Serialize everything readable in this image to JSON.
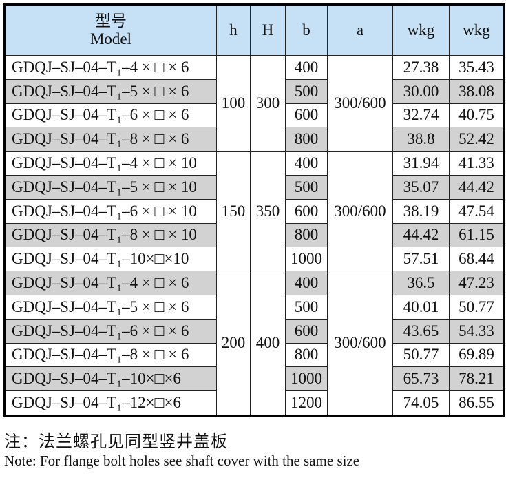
{
  "header": {
    "model_cn": "型号",
    "model_en": "Model",
    "h": "h",
    "H": "H",
    "b": "b",
    "a": "a",
    "wkg1": "wkg",
    "wkg2": "wkg"
  },
  "colors": {
    "header_bg": "#c6e0f5",
    "shade": "#d2d2d2"
  },
  "groups": [
    {
      "h": "100",
      "H": "300",
      "a": "300/600",
      "rows": [
        {
          "model": "GDQJ–SJ–04–T₁–4 × □ × 6",
          "b": "400",
          "w1": "27.38",
          "w2": "35.43",
          "shaded": false
        },
        {
          "model": "GDQJ–SJ–04–T₁–5 × □ × 6",
          "b": "500",
          "w1": "30.00",
          "w2": "38.08",
          "shaded": true
        },
        {
          "model": "GDQJ–SJ–04–T₁–6 × □ × 6",
          "b": "600",
          "w1": "32.74",
          "w2": "40.75",
          "shaded": false
        },
        {
          "model": "GDQJ–SJ–04–T₁–8 × □ × 6",
          "b": "800",
          "w1": "38.8",
          "w2": "52.42",
          "shaded": true
        }
      ]
    },
    {
      "h": "150",
      "H": "350",
      "a": "300/600",
      "rows": [
        {
          "model": "GDQJ–SJ–04–T₁–4 × □ × 10",
          "b": "400",
          "w1": "31.94",
          "w2": "41.33",
          "shaded": false
        },
        {
          "model": "GDQJ–SJ–04–T₁–5 × □ × 10",
          "b": "500",
          "w1": "35.07",
          "w2": "44.42",
          "shaded": true
        },
        {
          "model": "GDQJ–SJ–04–T₁–6 × □ × 10",
          "b": "600",
          "w1": "38.19",
          "w2": "47.54",
          "shaded": false
        },
        {
          "model": "GDQJ–SJ–04–T₁–8 × □ × 10",
          "b": "800",
          "w1": "44.42",
          "w2": "61.15",
          "shaded": true
        },
        {
          "model": "GDQJ–SJ–04–T₁–10×□×10",
          "b": "1000",
          "w1": "57.51",
          "w2": "68.44",
          "shaded": false
        }
      ]
    },
    {
      "h": "200",
      "H": "400",
      "a": "300/600",
      "rows": [
        {
          "model": "GDQJ–SJ–04–T₁–4 × □ × 6",
          "b": "400",
          "w1": "36.5",
          "w2": "47.23",
          "shaded": true
        },
        {
          "model": "GDQJ–SJ–04–T₁–5 × □ × 6",
          "b": "500",
          "w1": "40.01",
          "w2": "50.77",
          "shaded": false
        },
        {
          "model": "GDQJ–SJ–04–T₁–6 × □ × 6",
          "b": "600",
          "w1": "43.65",
          "w2": "54.33",
          "shaded": true
        },
        {
          "model": "GDQJ–SJ–04–T₁–8 × □ × 6",
          "b": "800",
          "w1": "50.77",
          "w2": "69.89",
          "shaded": false
        },
        {
          "model": "GDQJ–SJ–04–T₁–10×□×6",
          "b": "1000",
          "w1": "65.73",
          "w2": "78.21",
          "shaded": true
        },
        {
          "model": "GDQJ–SJ–04–T₁–12×□×6",
          "b": "1200",
          "w1": "74.05",
          "w2": "86.55",
          "shaded": false
        }
      ]
    }
  ],
  "notes": {
    "cn": "注：法兰螺孔见同型竖井盖板",
    "en": "Note: For flange bolt holes see shaft cover with the same size"
  }
}
